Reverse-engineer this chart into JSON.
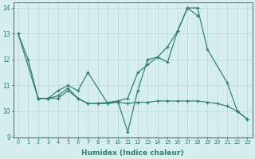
{
  "xlabel": "Humidex (Indice chaleur)",
  "xlim": [
    -0.5,
    23.5
  ],
  "ylim": [
    9,
    14.2
  ],
  "xticks": [
    0,
    1,
    2,
    3,
    4,
    5,
    6,
    7,
    8,
    9,
    10,
    11,
    12,
    13,
    14,
    15,
    16,
    17,
    18,
    19,
    20,
    21,
    22,
    23
  ],
  "yticks": [
    9,
    10,
    11,
    12,
    13,
    14
  ],
  "bg_color": "#d6eeee",
  "line_color": "#2e7d6e",
  "grid_color": "#b8d8d8",
  "series": [
    {
      "x": [
        0,
        1,
        2,
        3,
        4,
        5,
        6,
        7,
        8,
        10,
        11,
        12,
        13,
        14,
        15,
        16,
        17,
        18,
        19,
        21,
        22,
        23
      ],
      "y": [
        13,
        12,
        10.5,
        10.5,
        10.6,
        10.9,
        10.5,
        10.3,
        10.3,
        10.4,
        9.2,
        10.8,
        12.0,
        12.1,
        11.9,
        13.1,
        14.0,
        14.0,
        12.4,
        11.1,
        10.0,
        9.7
      ]
    },
    {
      "x": [
        2,
        3,
        4,
        5,
        6,
        7,
        9,
        11,
        12,
        13,
        14,
        15,
        16,
        17,
        18
      ],
      "y": [
        10.5,
        10.5,
        10.8,
        11.0,
        10.8,
        11.5,
        10.3,
        10.5,
        11.5,
        11.8,
        12.1,
        12.5,
        13.1,
        14.0,
        13.7
      ]
    },
    {
      "x": [
        0,
        2,
        3,
        4,
        5,
        6,
        7,
        8,
        9,
        10,
        11,
        12,
        13,
        14,
        15,
        16,
        17,
        18,
        19,
        20,
        21,
        22,
        23
      ],
      "y": [
        13,
        10.5,
        10.5,
        10.5,
        10.8,
        10.5,
        10.3,
        10.3,
        10.3,
        10.35,
        10.3,
        10.35,
        10.35,
        10.4,
        10.4,
        10.4,
        10.4,
        10.4,
        10.35,
        10.3,
        10.2,
        10.0,
        9.7
      ]
    }
  ]
}
